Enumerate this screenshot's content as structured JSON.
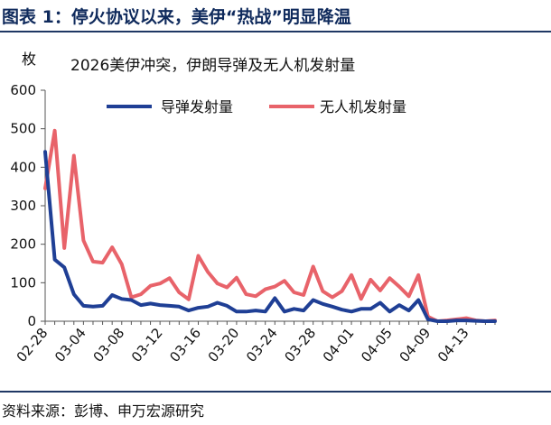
{
  "figure": {
    "label": "图表 1：停火协议以来，美伊“热战”明显降温",
    "source": "资料来源：彭博、申万宏源研究"
  },
  "chart_data": {
    "type": "line",
    "title": "2026美伊冲突，伊朗导弹及无人机发射量",
    "ylabel": "枚",
    "xlabel": "",
    "ylim": [
      0,
      600
    ],
    "yticks": [
      0,
      100,
      200,
      300,
      400,
      500,
      600
    ],
    "x_tick_labels": [
      "02-28",
      "03-04",
      "03-08",
      "03-12",
      "03-16",
      "03-20",
      "03-24",
      "03-28",
      "04-01",
      "04-05",
      "04-09",
      "04-13"
    ],
    "x": [
      "02-28",
      "03-01",
      "03-02",
      "03-03",
      "03-04",
      "03-05",
      "03-06",
      "03-07",
      "03-08",
      "03-09",
      "03-10",
      "03-11",
      "03-12",
      "03-13",
      "03-14",
      "03-15",
      "03-16",
      "03-17",
      "03-18",
      "03-19",
      "03-20",
      "03-21",
      "03-22",
      "03-23",
      "03-24",
      "03-25",
      "03-26",
      "03-27",
      "03-28",
      "03-29",
      "03-30",
      "03-31",
      "04-01",
      "04-02",
      "04-03",
      "04-04",
      "04-05",
      "04-06",
      "04-07",
      "04-08",
      "04-09",
      "04-10",
      "04-11",
      "04-12",
      "04-13",
      "04-14",
      "04-15",
      "04-16"
    ],
    "series": [
      {
        "name": "导弹发射量",
        "color": "#1f3f95",
        "values": [
          440,
          160,
          140,
          70,
          40,
          38,
          40,
          68,
          58,
          55,
          42,
          46,
          42,
          40,
          38,
          28,
          35,
          38,
          48,
          40,
          25,
          25,
          28,
          25,
          60,
          25,
          32,
          28,
          55,
          45,
          38,
          30,
          25,
          32,
          32,
          48,
          25,
          42,
          28,
          55,
          5,
          0,
          0,
          2,
          2,
          1,
          0,
          0
        ]
      },
      {
        "name": "无人机发射量",
        "color": "#e8636a",
        "values": [
          345,
          495,
          190,
          430,
          210,
          155,
          152,
          192,
          148,
          62,
          70,
          92,
          98,
          112,
          75,
          57,
          170,
          128,
          98,
          88,
          113,
          70,
          65,
          83,
          90,
          105,
          75,
          68,
          142,
          78,
          62,
          78,
          120,
          58,
          108,
          80,
          112,
          90,
          65,
          120,
          12,
          0,
          2,
          5,
          8,
          2,
          0,
          2
        ]
      }
    ],
    "legend_position": "top",
    "grid": false
  }
}
